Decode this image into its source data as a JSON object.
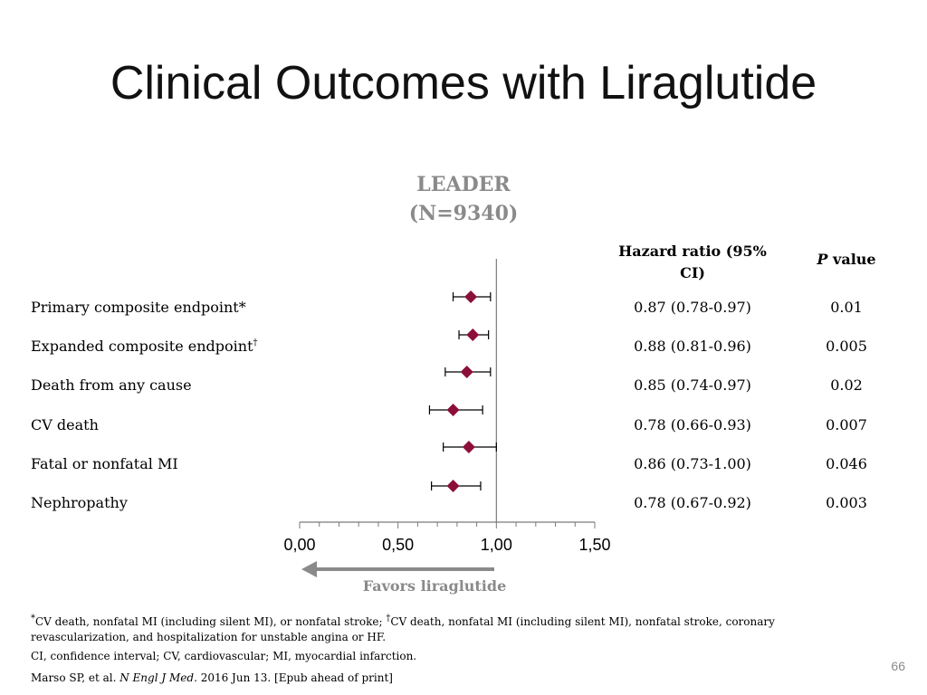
{
  "slide": {
    "title": "Clinical Outcomes with Liraglutide",
    "study_name": "LEADER",
    "study_n": "(N=9340)",
    "col_hr_line1": "Hazard ratio (95%",
    "col_hr_line2": "CI)",
    "col_p_italic": "P",
    "col_p_rest": " value",
    "favors_label": "Favors liraglutide",
    "page_number": "66"
  },
  "rows": [
    {
      "label": "Primary composite endpoint*",
      "label_sup": "",
      "hr_text": "0.87 (0.78-0.97)",
      "p": "0.01"
    },
    {
      "label": "Expanded composite endpoint",
      "label_sup": "†",
      "hr_text": "0.88 (0.81-0.96)",
      "p": "0.005"
    },
    {
      "label": "Death from any cause",
      "label_sup": "",
      "hr_text": "0.85 (0.74-0.97)",
      "p": "0.02"
    },
    {
      "label": "CV death",
      "label_sup": "",
      "hr_text": "0.78 (0.66-0.93)",
      "p": "0.007"
    },
    {
      "label": "Fatal or nonfatal MI",
      "label_sup": "",
      "hr_text": "0.86 (0.73-1.00)",
      "p": "0.046"
    },
    {
      "label": "Nephropathy",
      "label_sup": "",
      "hr_text": "0.78 (0.67-0.92)",
      "p": "0.003"
    }
  ],
  "chart_data": {
    "type": "scatter",
    "subtype": "forest_plot",
    "categories": [
      "Primary composite endpoint*",
      "Expanded composite endpoint†",
      "Death from any cause",
      "CV death",
      "Fatal or nonfatal MI",
      "Nephropathy"
    ],
    "series": [
      {
        "estimate": [
          0.87,
          0.88,
          0.85,
          0.78,
          0.86,
          0.78
        ],
        "ci_low": [
          0.78,
          0.81,
          0.74,
          0.66,
          0.73,
          0.67
        ],
        "ci_high": [
          0.97,
          0.96,
          0.97,
          0.93,
          1.0,
          0.92
        ]
      }
    ],
    "x_ticks": [
      "0,00",
      "0,50",
      "1,00",
      "1,50"
    ],
    "x_tick_values": [
      0,
      0.5,
      1.0,
      1.5
    ],
    "xlim": [
      0,
      1.5
    ],
    "reference_line": 1.0,
    "marker_color": "#8b0f3a",
    "favors_color": "#8a8a8a"
  },
  "footnotes": {
    "line1_star": "*",
    "line1_a": "CV death, nonfatal MI (including silent MI), or nonfatal stroke; ",
    "line1_dagger": "†",
    "line1_b": "CV death, nonfatal MI (including silent MI), nonfatal stroke, coronary",
    "line1_c": "revascularization, and hospitalization for unstable angina or HF.",
    "line2": "CI, confidence interval; CV, cardiovascular; MI, myocardial infarction.",
    "line3_a": "Marso SP, et al. ",
    "line3_journal": "N Engl J Med",
    "line3_b": ". 2016 Jun 13. [Epub ahead of print]"
  }
}
